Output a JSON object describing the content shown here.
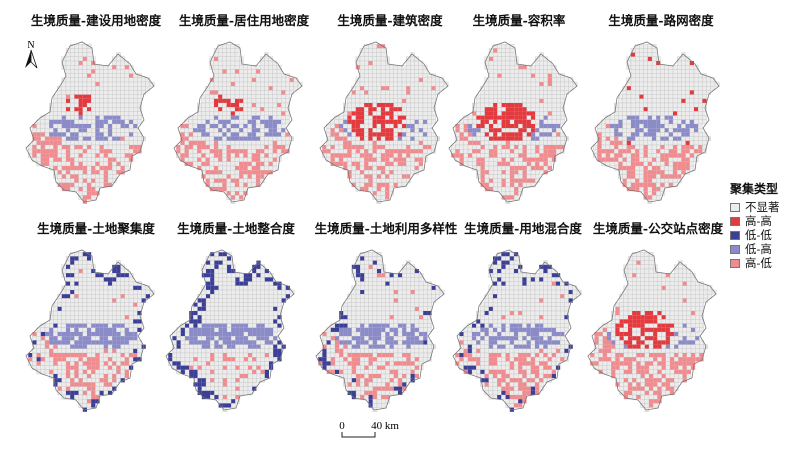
{
  "legend": {
    "title": "聚集类型",
    "items": [
      {
        "label": "不显著",
        "color": "#ececec"
      },
      {
        "label": "高-高",
        "color": "#e23a3e"
      },
      {
        "label": "低-低",
        "color": "#3b3f96"
      },
      {
        "label": "低-高",
        "color": "#8b8bc8"
      },
      {
        "label": "高-低",
        "color": "#ef8c8f"
      }
    ]
  },
  "scalebar": {
    "zero": "0",
    "distance": "40 km"
  },
  "north_arrow": {
    "label": "N"
  },
  "panels": [
    {
      "title": "生境质量-建设用地密度",
      "pattern": "build",
      "seed": 11
    },
    {
      "title": "生境质量-居住用地密度",
      "pattern": "resid",
      "seed": 23
    },
    {
      "title": "生境质量-建筑密度",
      "pattern": "redcore",
      "seed": 37
    },
    {
      "title": "生境质量-容积率",
      "pattern": "redcore2",
      "seed": 41
    },
    {
      "title": "生境质量-路网密度",
      "pattern": "road",
      "seed": 53
    },
    {
      "title": "生境质量-土地聚集度",
      "pattern": "agg",
      "seed": 67
    },
    {
      "title": "生境质量-土地整合度",
      "pattern": "integ",
      "seed": 71
    },
    {
      "title": "生境质量-土地利用多样性",
      "pattern": "divers",
      "seed": 83
    },
    {
      "title": "生境质量-用地混合度",
      "pattern": "mix",
      "seed": 97
    },
    {
      "title": "生境质量-公交站点密度",
      "pattern": "transit",
      "seed": 101
    }
  ]
}
